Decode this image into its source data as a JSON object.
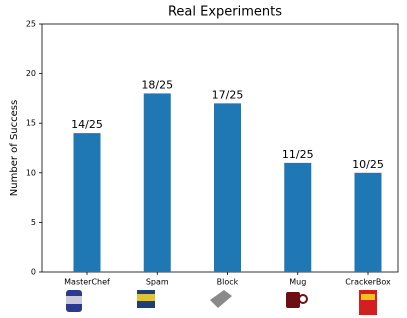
{
  "chart_data": {
    "type": "bar",
    "title": "Real Experiments",
    "y_label": "Number of Success",
    "categories": [
      "MasterChef",
      "Spam",
      "Block",
      "Mug",
      "CrackerBox"
    ],
    "values": [
      14,
      18,
      17,
      11,
      10
    ],
    "value_labels": [
      "14/25",
      "18/25",
      "17/25",
      "11/25",
      "10/25"
    ],
    "color": "#1f77b4",
    "ylim": [
      0,
      25
    ],
    "yticks": [
      0,
      5,
      10,
      15,
      20,
      25
    ],
    "grid": false
  }
}
